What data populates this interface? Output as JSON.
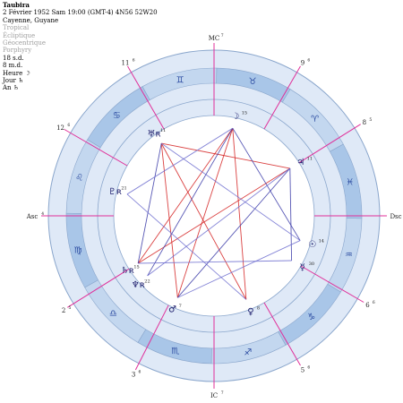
{
  "header": {
    "name": "Taubira",
    "datetime": "2 Février 1952  Sam  19:00 (GMT-4) 4N56  52W20",
    "place": "Cayenne, Guyane",
    "settings": [
      "Tropical",
      "Écliptique",
      "Géocentrique",
      "Porphyry"
    ],
    "extras": [
      "18 s.d.",
      "8 m.d.",
      "Heure ☽",
      "Jour ♄",
      "An ♄"
    ]
  },
  "chart": {
    "angles": {
      "mc": "MC",
      "mc_deg": "7",
      "ic": "IC",
      "ic_deg": "7",
      "asc": "Asc",
      "asc_deg": "4",
      "dsc": "Dsc",
      "dsc_deg": "4"
    },
    "houses": [
      {
        "label": "11",
        "deg": "6",
        "angle": 120
      },
      {
        "label": "12",
        "deg": "6",
        "angle": 150
      },
      {
        "label": "2",
        "deg": "5",
        "angle": 212
      },
      {
        "label": "3",
        "deg": "6",
        "angle": 243
      },
      {
        "label": "9",
        "deg": "6",
        "angle": 60
      },
      {
        "label": "8",
        "deg": "5",
        "angle": 32
      },
      {
        "label": "6",
        "deg": "6",
        "angle": 330
      },
      {
        "label": "5",
        "deg": "6",
        "angle": 300
      }
    ],
    "signs": [
      {
        "glyph": "♊",
        "angle": 104,
        "name": "gemini"
      },
      {
        "glyph": "♉",
        "angle": 74,
        "name": "taurus"
      },
      {
        "glyph": "♈",
        "angle": 44,
        "name": "aries"
      },
      {
        "glyph": "♓",
        "angle": 14,
        "name": "pisces"
      },
      {
        "glyph": "♒",
        "angle": 344,
        "name": "aquarius"
      },
      {
        "glyph": "♑",
        "angle": 314,
        "name": "capricorn"
      },
      {
        "glyph": "♐",
        "angle": 284,
        "name": "sagittarius"
      },
      {
        "glyph": "♏",
        "angle": 254,
        "name": "scorpio"
      },
      {
        "glyph": "♎",
        "angle": 224,
        "name": "libra"
      },
      {
        "glyph": "♍",
        "angle": 194,
        "name": "virgo"
      },
      {
        "glyph": "♌",
        "angle": 164,
        "name": "leo"
      },
      {
        "glyph": "♋",
        "angle": 134,
        "name": "cancer"
      }
    ],
    "planets": [
      {
        "name": "moon",
        "glyph": "☽",
        "deg": "15",
        "angle": 78
      },
      {
        "name": "jupiter",
        "glyph": "♃",
        "deg": "11",
        "angle": 32
      },
      {
        "name": "sun",
        "glyph": "☉",
        "deg": "14",
        "angle": 344
      },
      {
        "name": "mercury",
        "glyph": "☿",
        "deg": "30",
        "angle": 330
      },
      {
        "name": "venus",
        "glyph": "♀",
        "deg": "8",
        "angle": 291
      },
      {
        "name": "mars",
        "glyph": "♂",
        "deg": "7",
        "angle": 246
      },
      {
        "name": "neptune",
        "glyph": "♆ʀ",
        "deg": "22",
        "angle": 222
      },
      {
        "name": "saturn",
        "glyph": "♄ʀ",
        "deg": "15",
        "angle": 212
      },
      {
        "name": "pluto",
        "glyph": "♇ʀ",
        "deg": "21",
        "angle": 166
      },
      {
        "name": "uranus",
        "glyph": "♅ʀ",
        "deg": "11",
        "angle": 126
      }
    ],
    "aspects": [
      {
        "from": "uranus",
        "to": "jupiter",
        "color": "#d42020"
      },
      {
        "from": "uranus",
        "to": "mars",
        "color": "#d42020"
      },
      {
        "from": "uranus",
        "to": "venus",
        "color": "#d42020"
      },
      {
        "from": "saturn",
        "to": "jupiter",
        "color": "#d42020"
      },
      {
        "from": "saturn",
        "to": "moon",
        "color": "#d42020"
      },
      {
        "from": "mars",
        "to": "moon",
        "color": "#d42020"
      },
      {
        "from": "venus",
        "to": "moon",
        "color": "#d42020"
      },
      {
        "from": "uranus",
        "to": "saturn",
        "color": "#3a3aa8"
      },
      {
        "from": "moon",
        "to": "sun",
        "color": "#3a3aa8"
      },
      {
        "from": "moon",
        "to": "neptune",
        "color": "#3a3aa8"
      },
      {
        "from": "jupiter",
        "to": "mars",
        "color": "#3a3aa8"
      },
      {
        "from": "jupiter",
        "to": "mercury",
        "color": "#3a3aa8"
      },
      {
        "from": "pluto",
        "to": "moon",
        "color": "#7070d0"
      },
      {
        "from": "pluto",
        "to": "venus",
        "color": "#7070d0"
      },
      {
        "from": "mercury",
        "to": "saturn",
        "color": "#7070d0"
      },
      {
        "from": "sun",
        "to": "mars",
        "color": "#7070d0"
      },
      {
        "from": "uranus",
        "to": "sun",
        "color": "#7070d0"
      },
      {
        "from": "neptune",
        "to": "jupiter",
        "color": "#7070d0"
      }
    ],
    "colors": {
      "outer_ring": "#dfe9f7",
      "zodiac_band": "#a9c6e8",
      "zodiac_band_alt": "#c3d7ef",
      "inner_ring": "#dfe9f7",
      "ring_stroke": "#8aa6cc",
      "house_line": "#e0309a",
      "sign_glyph": "#2a4aa0",
      "planet_glyph": "#1a1a6a",
      "label_text": "#202020"
    }
  }
}
